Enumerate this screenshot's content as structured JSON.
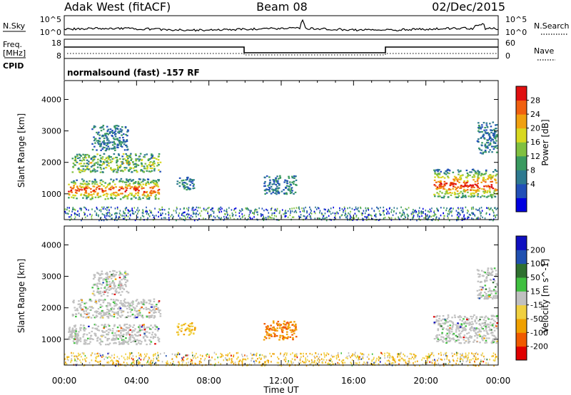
{
  "header": {
    "station": "Adak West (fitACF)",
    "beam": "Beam 08",
    "date": "02/Dec/2015"
  },
  "top_panels": {
    "nsky": {
      "label": "N.Sky",
      "ticks": [
        "10^5",
        "10^0"
      ],
      "right_label": "N.Search",
      "right_ticks": [
        "10^5",
        "10^0"
      ]
    },
    "freq": {
      "label_line1": "Freq.",
      "label_line2": "[MHz]",
      "ticks": [
        "18",
        "8"
      ],
      "right_label": "Nave",
      "right_ticks": [
        "60",
        "0"
      ]
    },
    "cpid": {
      "label": "CPID",
      "text": "normalsound (fast) -157 RF"
    }
  },
  "chart_data": [
    {
      "type": "heatmap",
      "name_label": "Power",
      "ylabel": "Slant Range [km]",
      "xlabel": "Time UT",
      "x_ticks": [
        "00:00",
        "04:00",
        "08:00",
        "12:00",
        "16:00",
        "20:00",
        "00:00"
      ],
      "x_range_hours": [
        0,
        24
      ],
      "y_ticks": [
        1000,
        2000,
        3000,
        4000
      ],
      "y_range_km": [
        180,
        4600
      ],
      "colorbar": {
        "label": "Power [dB]",
        "ticks": [
          "28",
          "24",
          "20",
          "16",
          "12",
          "8",
          "4"
        ],
        "range": [
          0,
          32
        ],
        "colors": [
          "#0000e0",
          "#2250b8",
          "#2e7a90",
          "#3a9a60",
          "#80c040",
          "#d8d820",
          "#f0a010",
          "#f06010",
          "#e01010"
        ]
      },
      "echo_regions": [
        {
          "t_start": 0.2,
          "t_end": 5.2,
          "range_low": 850,
          "range_high": 1500,
          "level": "strong"
        },
        {
          "t_start": 0.4,
          "t_end": 5.3,
          "range_low": 1700,
          "range_high": 2300,
          "level": "moderate"
        },
        {
          "t_start": 1.5,
          "t_end": 3.5,
          "range_low": 2400,
          "range_high": 3200,
          "level": "weak"
        },
        {
          "t_start": 6.2,
          "t_end": 7.2,
          "range_low": 1150,
          "range_high": 1550,
          "level": "weak"
        },
        {
          "t_start": 11.0,
          "t_end": 12.8,
          "range_low": 1000,
          "range_high": 1600,
          "level": "weak"
        },
        {
          "t_start": 20.4,
          "t_end": 23.9,
          "range_low": 900,
          "range_high": 1800,
          "level": "strong"
        },
        {
          "t_start": 22.8,
          "t_end": 23.9,
          "range_low": 2300,
          "range_high": 3300,
          "level": "weak"
        }
      ]
    },
    {
      "type": "heatmap",
      "name_label": "Velocity",
      "ylabel": "Slant Range [km]",
      "xlabel": "Time UT",
      "x_ticks": [
        "00:00",
        "04:00",
        "08:00",
        "12:00",
        "16:00",
        "20:00",
        "00:00"
      ],
      "x_range_hours": [
        0,
        24
      ],
      "y_ticks": [
        1000,
        2000,
        3000,
        4000
      ],
      "y_range_km": [
        180,
        4600
      ],
      "colorbar": {
        "label": "Velocity [m s^-1]",
        "ticks": [
          "200",
          "100",
          "50",
          "15",
          "-15",
          "-50",
          "-100",
          "-200"
        ],
        "range": [
          -250,
          250
        ],
        "colors": [
          "#e00000",
          "#f05a00",
          "#f0a000",
          "#f0d040",
          "#c0c0c0",
          "#40c040",
          "#2f7030",
          "#2050b0",
          "#1010c0"
        ]
      },
      "ground_scatter_color": "#c0c0c0"
    }
  ]
}
